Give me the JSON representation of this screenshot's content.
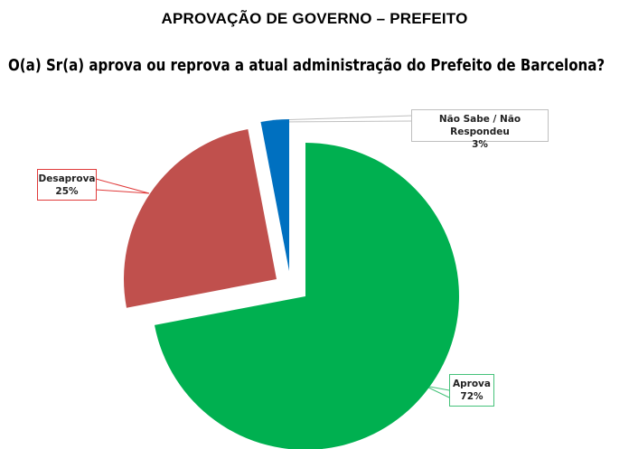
{
  "header": {
    "title": "APROVAÇÃO DE GOVERNO – PREFEITO",
    "question": "O(a) Sr(a) aprova ou reprova a atual administração do Prefeito de Barcelona?"
  },
  "labels": {
    "nao_sabe": {
      "name": "Não Sabe / Não Respondeu",
      "value": "3%"
    },
    "desaprova": {
      "name": "Desaprova",
      "value": "25%"
    },
    "aprova": {
      "name": "Aprova",
      "value": "72%"
    }
  },
  "colors": {
    "aprova": "#00B050",
    "desaprova": "#C0504D",
    "nao_sabe": "#0070C0"
  },
  "chart_data": {
    "type": "pie",
    "title": "APROVAÇÃO DE GOVERNO – PREFEITO",
    "subtitle": "O(a) Sr(a) aprova ou reprova a atual administração do Prefeito de Barcelona?",
    "categories": [
      "Aprova",
      "Desaprova",
      "Não Sabe / Não Respondeu"
    ],
    "values": [
      72,
      25,
      3
    ],
    "unit": "%",
    "colors": [
      "#00B050",
      "#C0504D",
      "#0070C0"
    ],
    "exploded": [
      "Desaprova",
      "Não Sabe / Não Respondeu"
    ],
    "legend": "none (callout data labels)"
  }
}
